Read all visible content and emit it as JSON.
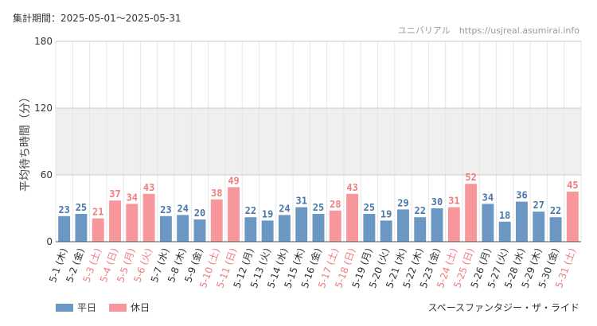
{
  "header": {
    "period_label": "集計期間：2025-05-01～2025-05-31",
    "site_label": "ユニバリアル　https://usjreal.asumirai.info"
  },
  "footer": {
    "attraction": "スペースファンタジー・ザ・ライド"
  },
  "colors": {
    "weekday": "#6a97c4",
    "holiday": "#f7979b",
    "holiday_text": "#f07b7f",
    "weekday_text": "#4a77a8"
  },
  "chart_data": {
    "type": "bar",
    "ylabel": "平均待ち時間（分）",
    "ylim": [
      0,
      180
    ],
    "yticks": [
      0,
      60,
      120,
      180
    ],
    "grid": true,
    "legend_placement": "bottom-left",
    "categories": [
      "5-1 (木)",
      "5-2 (金)",
      "5-3 (土)",
      "5-4 (日)",
      "5-5 (月)",
      "5-6 (火)",
      "5-7 (水)",
      "5-8 (木)",
      "5-9 (金)",
      "5-10 (土)",
      "5-11 (日)",
      "5-12 (月)",
      "5-13 (火)",
      "5-14 (水)",
      "5-15 (木)",
      "5-16 (金)",
      "5-17 (土)",
      "5-18 (日)",
      "5-19 (月)",
      "5-20 (火)",
      "5-21 (水)",
      "5-22 (木)",
      "5-23 (金)",
      "5-24 (土)",
      "5-25 (日)",
      "5-26 (月)",
      "5-27 (火)",
      "5-28 (水)",
      "5-29 (木)",
      "5-30 (金)",
      "5-31 (土)"
    ],
    "values": [
      23,
      25,
      21,
      37,
      34,
      43,
      23,
      24,
      20,
      38,
      49,
      22,
      19,
      24,
      31,
      25,
      28,
      43,
      25,
      19,
      29,
      22,
      30,
      31,
      52,
      34,
      18,
      36,
      27,
      22,
      45
    ],
    "holiday": [
      false,
      false,
      true,
      true,
      true,
      true,
      false,
      false,
      false,
      true,
      true,
      false,
      false,
      false,
      false,
      false,
      true,
      true,
      false,
      false,
      false,
      false,
      false,
      true,
      true,
      false,
      false,
      false,
      false,
      false,
      true
    ],
    "series": [
      {
        "name": "平日"
      },
      {
        "name": "休日"
      }
    ]
  }
}
